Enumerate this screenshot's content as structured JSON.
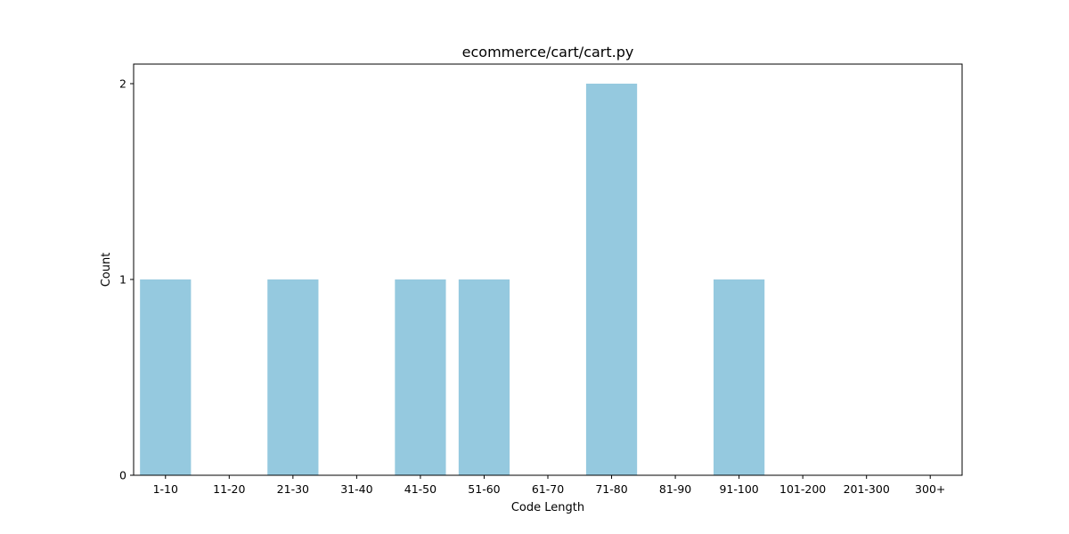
{
  "chart_data": {
    "type": "bar",
    "title": "ecommerce/cart/cart.py",
    "xlabel": "Code Length",
    "ylabel": "Count",
    "categories": [
      "1-10",
      "11-20",
      "21-30",
      "31-40",
      "41-50",
      "51-60",
      "61-70",
      "71-80",
      "81-90",
      "91-100",
      "101-200",
      "201-300",
      "300+"
    ],
    "values": [
      1,
      0,
      1,
      0,
      1,
      1,
      0,
      2,
      0,
      1,
      0,
      0,
      0
    ],
    "ylim": [
      0,
      2.1
    ],
    "yticks": [
      0,
      1,
      2
    ],
    "bar_color": "#95c9df",
    "grid": false,
    "legend": null
  }
}
